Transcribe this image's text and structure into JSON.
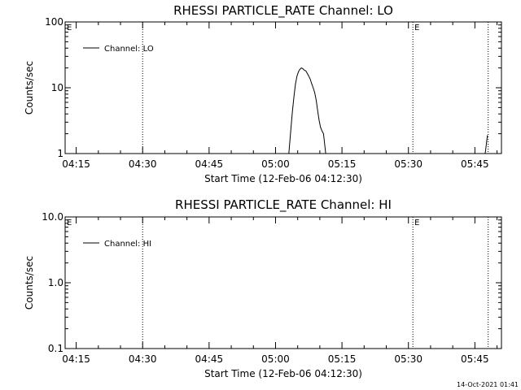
{
  "chart_data": [
    {
      "type": "line",
      "title": "RHESSI PARTICLE_RATE Channel: LO",
      "xlabel": "Start Time (12-Feb-06 04:12:30)",
      "ylabel": "Counts/sec",
      "yscale": "log",
      "ylim": [
        1,
        100
      ],
      "ytick_values": [
        1,
        10,
        100
      ],
      "ytick_labels": [
        "1",
        "10",
        "100"
      ],
      "xlim": [
        "04:12:30",
        "05:51:00"
      ],
      "xtick_labels": [
        "04:15",
        "04:30",
        "04:45",
        "05:00",
        "05:15",
        "05:30",
        "05:45"
      ],
      "grid": false,
      "legend": {
        "position": "top-left",
        "entries": [
          "Channel: LO"
        ]
      },
      "markers": [
        {
          "time": "04:12:30",
          "label": "E"
        },
        {
          "time": "04:30:00",
          "label": ""
        },
        {
          "time": "05:31:00",
          "label": "E"
        },
        {
          "time": "05:48:00",
          "label": ""
        }
      ],
      "series": [
        {
          "name": "Channel: LO",
          "segments": [
            {
              "x": [
                "05:03:00",
                "05:03:30",
                "05:03:50",
                "05:04:10",
                "05:04:30",
                "05:04:50",
                "05:05:10",
                "05:05:30",
                "05:05:50",
                "05:06:10",
                "05:06:30",
                "05:06:50",
                "05:07:10",
                "05:07:30",
                "05:07:50",
                "05:08:10",
                "05:08:30",
                "05:08:50",
                "05:09:10",
                "05:09:30",
                "05:09:50",
                "05:10:10",
                "05:10:30",
                "05:10:50",
                "05:11:20"
              ],
              "y": [
                1.0,
                2.5,
                4.5,
                7.5,
                11.5,
                15.0,
                17.5,
                19.0,
                20.0,
                19.5,
                18.5,
                18.0,
                16.5,
                15.0,
                13.5,
                11.5,
                10.0,
                8.5,
                6.5,
                4.5,
                3.2,
                2.5,
                2.2,
                2.0,
                1.0
              ]
            },
            {
              "x": [
                "05:47:20",
                "05:47:50"
              ],
              "y": [
                1.0,
                1.9
              ]
            }
          ]
        }
      ]
    },
    {
      "type": "line",
      "title": "RHESSI PARTICLE_RATE Channel: HI",
      "xlabel": "Start Time (12-Feb-06 04:12:30)",
      "ylabel": "Counts/sec",
      "yscale": "log",
      "ylim": [
        0.1,
        10
      ],
      "ytick_values": [
        0.1,
        1,
        10
      ],
      "ytick_labels": [
        "0.1",
        "1.0",
        "10.0"
      ],
      "xlim": [
        "04:12:30",
        "05:51:00"
      ],
      "xtick_labels": [
        "04:15",
        "04:30",
        "04:45",
        "05:00",
        "05:15",
        "05:30",
        "05:45"
      ],
      "grid": false,
      "legend": {
        "position": "top-left",
        "entries": [
          "Channel: HI"
        ]
      },
      "markers": [
        {
          "time": "04:12:30",
          "label": "E"
        },
        {
          "time": "04:30:00",
          "label": ""
        },
        {
          "time": "05:31:00",
          "label": "E"
        },
        {
          "time": "05:48:00",
          "label": ""
        }
      ],
      "series": [
        {
          "name": "Channel: HI",
          "segments": []
        }
      ]
    }
  ],
  "footer": {
    "timestamp": "14-Oct-2021 01:41"
  }
}
